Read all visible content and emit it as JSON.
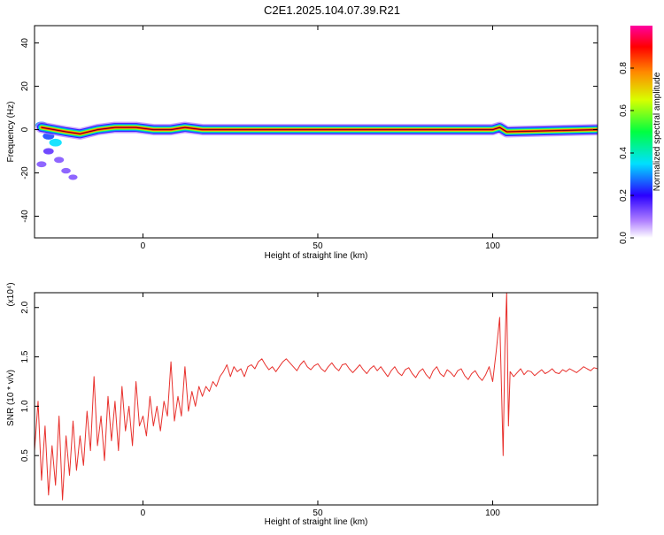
{
  "title": "C2E1.2025.104.07.39.R21",
  "chart_data": [
    {
      "type": "heatmap",
      "xlabel": "Height of straight line (km)",
      "ylabel": "Frequency (Hz)",
      "xlim": [
        -31,
        130
      ],
      "ylim": [
        -50,
        48
      ],
      "x_ticks": [
        0,
        50,
        100
      ],
      "x_tick_labels": [
        "0",
        "50",
        "100"
      ],
      "y_ticks": [
        40,
        20,
        0,
        -20,
        -40
      ],
      "y_tick_labels": [
        "40",
        "20",
        "0",
        "-20",
        "-40"
      ],
      "colorbar": {
        "label": "Normalized spectral amplitude",
        "range": [
          0,
          1
        ],
        "ticks": [
          0.0,
          0.2,
          0.4,
          0.6,
          0.8
        ],
        "tick_labels": [
          "0.0",
          "0.2",
          "0.4",
          "0.6",
          "0.8"
        ]
      },
      "ridge": [
        {
          "x": -29,
          "y": 1
        },
        {
          "x": -22,
          "y": -1
        },
        {
          "x": -18,
          "y": -2
        },
        {
          "x": -13,
          "y": 0
        },
        {
          "x": -8,
          "y": 1
        },
        {
          "x": -2,
          "y": 1
        },
        {
          "x": 3,
          "y": 0
        },
        {
          "x": 8,
          "y": 0
        },
        {
          "x": 12,
          "y": 1
        },
        {
          "x": 17,
          "y": 0
        },
        {
          "x": 20,
          "y": 0
        },
        {
          "x": 60,
          "y": 0
        },
        {
          "x": 100,
          "y": 0
        },
        {
          "x": 102,
          "y": 1
        },
        {
          "x": 104,
          "y": -1
        },
        {
          "x": 130,
          "y": 0
        }
      ],
      "blobs": [
        {
          "x": -29,
          "y": 2,
          "v": 0.3
        },
        {
          "x": -27,
          "y": -3,
          "v": 0.25
        },
        {
          "x": -25,
          "y": -6,
          "v": 0.35
        },
        {
          "x": -27,
          "y": -10,
          "v": 0.15
        },
        {
          "x": -24,
          "y": -14,
          "v": 0.1
        },
        {
          "x": -22,
          "y": -19,
          "v": 0.05
        },
        {
          "x": -29,
          "y": -16,
          "v": 0.1
        },
        {
          "x": -20,
          "y": -22,
          "v": 0.02
        }
      ]
    },
    {
      "type": "line",
      "xlabel": "Height of straight line (km)",
      "ylabel": "SNR (10 * v/v)",
      "yscale_label": "(x10⁴)",
      "xlim": [
        -31,
        130
      ],
      "ylim": [
        0,
        2.15
      ],
      "x_ticks": [
        0,
        50,
        100
      ],
      "x_tick_labels": [
        "0",
        "50",
        "100"
      ],
      "y_ticks": [
        0.5,
        1.0,
        1.5,
        2.0
      ],
      "y_tick_labels": [
        "0.5",
        "1.0",
        "1.5",
        "2.0"
      ],
      "series": [
        {
          "color": "#e8302c",
          "points": [
            [
              -31,
              0.55
            ],
            [
              -30,
              1.05
            ],
            [
              -29,
              0.25
            ],
            [
              -28,
              0.8
            ],
            [
              -27,
              0.1
            ],
            [
              -26,
              0.6
            ],
            [
              -25,
              0.2
            ],
            [
              -24,
              0.9
            ],
            [
              -23,
              0.05
            ],
            [
              -22,
              0.7
            ],
            [
              -21,
              0.3
            ],
            [
              -20,
              0.85
            ],
            [
              -19,
              0.35
            ],
            [
              -18,
              0.7
            ],
            [
              -17,
              0.4
            ],
            [
              -16,
              0.95
            ],
            [
              -15,
              0.55
            ],
            [
              -14,
              1.3
            ],
            [
              -13,
              0.6
            ],
            [
              -12,
              0.9
            ],
            [
              -11,
              0.45
            ],
            [
              -10,
              1.1
            ],
            [
              -9,
              0.65
            ],
            [
              -8,
              1.05
            ],
            [
              -7,
              0.55
            ],
            [
              -6,
              1.2
            ],
            [
              -5,
              0.75
            ],
            [
              -4,
              1.0
            ],
            [
              -3,
              0.6
            ],
            [
              -2,
              1.25
            ],
            [
              -1,
              0.8
            ],
            [
              0,
              0.9
            ],
            [
              1,
              0.7
            ],
            [
              2,
              1.1
            ],
            [
              3,
              0.8
            ],
            [
              4,
              1.0
            ],
            [
              5,
              0.75
            ],
            [
              6,
              1.05
            ],
            [
              7,
              0.9
            ],
            [
              8,
              1.45
            ],
            [
              9,
              0.85
            ],
            [
              10,
              1.1
            ],
            [
              11,
              0.9
            ],
            [
              12,
              1.4
            ],
            [
              13,
              0.95
            ],
            [
              14,
              1.15
            ],
            [
              15,
              1.0
            ],
            [
              16,
              1.2
            ],
            [
              17,
              1.1
            ],
            [
              18,
              1.2
            ],
            [
              19,
              1.15
            ],
            [
              20,
              1.25
            ],
            [
              21,
              1.2
            ],
            [
              22,
              1.3
            ],
            [
              23,
              1.35
            ],
            [
              24,
              1.42
            ],
            [
              25,
              1.3
            ],
            [
              26,
              1.4
            ],
            [
              27,
              1.35
            ],
            [
              28,
              1.38
            ],
            [
              29,
              1.3
            ],
            [
              30,
              1.4
            ],
            [
              31,
              1.42
            ],
            [
              32,
              1.38
            ],
            [
              33,
              1.45
            ],
            [
              34,
              1.48
            ],
            [
              35,
              1.42
            ],
            [
              36,
              1.37
            ],
            [
              37,
              1.4
            ],
            [
              38,
              1.35
            ],
            [
              39,
              1.4
            ],
            [
              40,
              1.45
            ],
            [
              41,
              1.48
            ],
            [
              42,
              1.44
            ],
            [
              43,
              1.4
            ],
            [
              44,
              1.36
            ],
            [
              45,
              1.42
            ],
            [
              46,
              1.46
            ],
            [
              47,
              1.4
            ],
            [
              48,
              1.37
            ],
            [
              49,
              1.41
            ],
            [
              50,
              1.43
            ],
            [
              51,
              1.38
            ],
            [
              52,
              1.35
            ],
            [
              53,
              1.4
            ],
            [
              54,
              1.44
            ],
            [
              55,
              1.39
            ],
            [
              56,
              1.36
            ],
            [
              57,
              1.42
            ],
            [
              58,
              1.43
            ],
            [
              59,
              1.38
            ],
            [
              60,
              1.34
            ],
            [
              61,
              1.38
            ],
            [
              62,
              1.42
            ],
            [
              63,
              1.37
            ],
            [
              64,
              1.33
            ],
            [
              65,
              1.38
            ],
            [
              66,
              1.41
            ],
            [
              67,
              1.36
            ],
            [
              68,
              1.4
            ],
            [
              69,
              1.35
            ],
            [
              70,
              1.3
            ],
            [
              71,
              1.36
            ],
            [
              72,
              1.4
            ],
            [
              73,
              1.34
            ],
            [
              74,
              1.31
            ],
            [
              75,
              1.37
            ],
            [
              76,
              1.39
            ],
            [
              77,
              1.33
            ],
            [
              78,
              1.29
            ],
            [
              79,
              1.35
            ],
            [
              80,
              1.38
            ],
            [
              81,
              1.32
            ],
            [
              82,
              1.28
            ],
            [
              83,
              1.36
            ],
            [
              84,
              1.4
            ],
            [
              85,
              1.33
            ],
            [
              86,
              1.3
            ],
            [
              87,
              1.37
            ],
            [
              88,
              1.34
            ],
            [
              89,
              1.3
            ],
            [
              90,
              1.36
            ],
            [
              91,
              1.38
            ],
            [
              92,
              1.31
            ],
            [
              93,
              1.27
            ],
            [
              94,
              1.33
            ],
            [
              95,
              1.36
            ],
            [
              96,
              1.3
            ],
            [
              97,
              1.26
            ],
            [
              98,
              1.32
            ],
            [
              99,
              1.4
            ],
            [
              100,
              1.25
            ],
            [
              101,
              1.55
            ],
            [
              102,
              1.9
            ],
            [
              102.5,
              1.2
            ],
            [
              103,
              0.5
            ],
            [
              103.5,
              1.6
            ],
            [
              104,
              2.15
            ],
            [
              104.5,
              0.8
            ],
            [
              105,
              1.35
            ],
            [
              106,
              1.3
            ],
            [
              107,
              1.34
            ],
            [
              108,
              1.38
            ],
            [
              109,
              1.32
            ],
            [
              110,
              1.36
            ],
            [
              111,
              1.35
            ],
            [
              112,
              1.31
            ],
            [
              113,
              1.34
            ],
            [
              114,
              1.37
            ],
            [
              115,
              1.33
            ],
            [
              116,
              1.35
            ],
            [
              117,
              1.38
            ],
            [
              118,
              1.34
            ],
            [
              119,
              1.33
            ],
            [
              120,
              1.37
            ],
            [
              121,
              1.35
            ],
            [
              122,
              1.38
            ],
            [
              123,
              1.36
            ],
            [
              124,
              1.34
            ],
            [
              125,
              1.37
            ],
            [
              126,
              1.4
            ],
            [
              127,
              1.38
            ],
            [
              128,
              1.36
            ],
            [
              129,
              1.39
            ],
            [
              130,
              1.38
            ]
          ]
        }
      ]
    }
  ]
}
